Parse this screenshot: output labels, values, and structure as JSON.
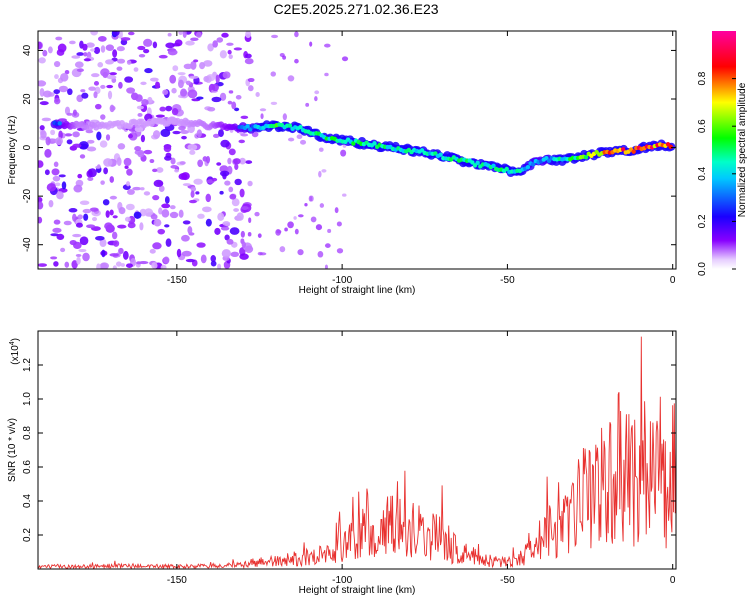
{
  "title": "C2E5.2025.271.02.36.E23",
  "chart_data": [
    {
      "type": "heatmap",
      "xlabel": "Height of straight line (km)",
      "ylabel": "Frequency (Hz)",
      "xlim": [
        -192,
        1
      ],
      "ylim": [
        -50,
        48
      ],
      "xticks": [
        -150,
        -100,
        -50,
        0
      ],
      "yticks": [
        -40,
        -20,
        0,
        20,
        40
      ],
      "colorbar": {
        "label": "Normalized spectral amplitude",
        "range": [
          0,
          1
        ],
        "ticks": [
          "0.0",
          "0.2",
          "0.4",
          "0.6",
          "0.8"
        ],
        "colormap": "rainbow (white-violet-blue-cyan-green-yellow-red-magenta)"
      },
      "noise_region_x": [
        -192,
        -128
      ],
      "ridge": [
        {
          "x": -187,
          "y": 10,
          "a": 0.35
        },
        {
          "x": -180,
          "y": 9,
          "a": 0.15
        },
        {
          "x": -170,
          "y": 9,
          "a": 0.12
        },
        {
          "x": -160,
          "y": 10,
          "a": 0.12
        },
        {
          "x": -150,
          "y": 11,
          "a": 0.12
        },
        {
          "x": -140,
          "y": 9,
          "a": 0.15
        },
        {
          "x": -128,
          "y": 8,
          "a": 0.35
        },
        {
          "x": -120,
          "y": 9,
          "a": 0.55
        },
        {
          "x": -113,
          "y": 8,
          "a": 0.45
        },
        {
          "x": -105,
          "y": 4,
          "a": 0.5
        },
        {
          "x": -95,
          "y": 2,
          "a": 0.5
        },
        {
          "x": -85,
          "y": 0,
          "a": 0.5
        },
        {
          "x": -75,
          "y": -2,
          "a": 0.45
        },
        {
          "x": -65,
          "y": -5,
          "a": 0.5
        },
        {
          "x": -55,
          "y": -8,
          "a": 0.5
        },
        {
          "x": -47,
          "y": -10,
          "a": 0.45
        },
        {
          "x": -40,
          "y": -5,
          "a": 0.35
        },
        {
          "x": -32,
          "y": -5,
          "a": 0.5
        },
        {
          "x": -25,
          "y": -3,
          "a": 0.65
        },
        {
          "x": -20,
          "y": -2,
          "a": 0.8
        },
        {
          "x": -12,
          "y": -1,
          "a": 0.85
        },
        {
          "x": -5,
          "y": 1,
          "a": 0.85
        },
        {
          "x": 0,
          "y": 1,
          "a": 0.8
        }
      ]
    },
    {
      "type": "line",
      "xlabel": "Height of straight line (km)",
      "ylabel": "SNR (10 * v/v)",
      "ymultiplier": "(x10",
      "ymultiplier_exp": "4",
      "xlim": [
        -192,
        1
      ],
      "ylim": [
        0,
        1.4
      ],
      "xticks": [
        -150,
        -100,
        -50,
        0
      ],
      "yticks": [
        "0.2",
        "0.4",
        "0.6",
        "0.8",
        "1.0",
        "1.2"
      ],
      "series": [
        {
          "color": "#e8312f",
          "x": [
            -192,
            -180,
            -170,
            -160,
            -150,
            -140,
            -130,
            -126,
            -120,
            -115,
            -110,
            -105,
            -100,
            -95,
            -92,
            -90,
            -85,
            -82,
            -80,
            -75,
            -70,
            -65,
            -60,
            -55,
            -50,
            -45,
            -42,
            -40,
            -35,
            -30,
            -28,
            -25,
            -22,
            -20,
            -15,
            -12,
            -10,
            -7,
            -5,
            -3,
            -1,
            1
          ],
          "y": [
            0.02,
            0.02,
            0.025,
            0.025,
            0.02,
            0.025,
            0.03,
            0.06,
            0.06,
            0.08,
            0.1,
            0.12,
            0.18,
            0.25,
            0.4,
            0.3,
            0.35,
            0.45,
            0.35,
            0.3,
            0.25,
            0.15,
            0.1,
            0.06,
            0.06,
            0.1,
            0.25,
            0.3,
            0.3,
            0.4,
            0.55,
            0.6,
            0.7,
            0.75,
            0.85,
            0.75,
            0.9,
            0.8,
            0.8,
            0.6,
            0.75,
            0.85
          ]
        }
      ]
    }
  ]
}
